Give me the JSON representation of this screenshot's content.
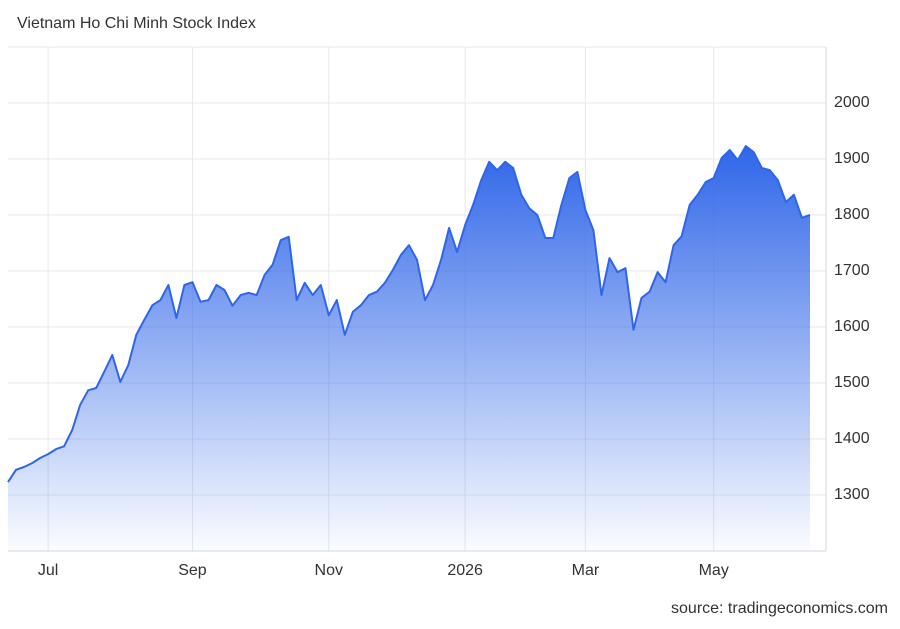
{
  "chart_data": {
    "type": "area",
    "title": "Vietnam Ho Chi Minh Stock Index",
    "source": "source: tradingeconomics.com",
    "color": "#2f66e8",
    "values": [
      1323,
      1345,
      1350,
      1357,
      1366,
      1373,
      1382,
      1387,
      1416,
      1461,
      1487,
      1491,
      1520,
      1550,
      1502,
      1532,
      1586,
      1613,
      1639,
      1648,
      1675,
      1616,
      1675,
      1680,
      1645,
      1648,
      1675,
      1666,
      1638,
      1657,
      1661,
      1657,
      1693,
      1711,
      1755,
      1761,
      1648,
      1679,
      1657,
      1675,
      1621,
      1648,
      1586,
      1627,
      1639,
      1657,
      1663,
      1679,
      1702,
      1729,
      1746,
      1720,
      1648,
      1675,
      1720,
      1777,
      1734,
      1782,
      1818,
      1862,
      1895,
      1880,
      1895,
      1884,
      1836,
      1812,
      1800,
      1759,
      1759,
      1818,
      1866,
      1877,
      1809,
      1773,
      1657,
      1723,
      1698,
      1705,
      1595,
      1652,
      1663,
      1698,
      1680,
      1746,
      1762,
      1818,
      1836,
      1859,
      1866,
      1902,
      1916,
      1898,
      1923,
      1912,
      1884,
      1880,
      1862,
      1823,
      1836,
      1795,
      1800
    ],
    "xlim": [
      0,
      102
    ],
    "xticks": [
      {
        "value": 5,
        "label": "Jul"
      },
      {
        "value": 23,
        "label": "Sep"
      },
      {
        "value": 40,
        "label": "Nov"
      },
      {
        "value": 57,
        "label": "2026"
      },
      {
        "value": 72,
        "label": "Mar"
      },
      {
        "value": 88,
        "label": "May"
      }
    ],
    "ylim": [
      1200,
      2100
    ],
    "yticks": [
      1300,
      1400,
      1500,
      1600,
      1700,
      1800,
      1900,
      2000
    ],
    "grid": true
  }
}
